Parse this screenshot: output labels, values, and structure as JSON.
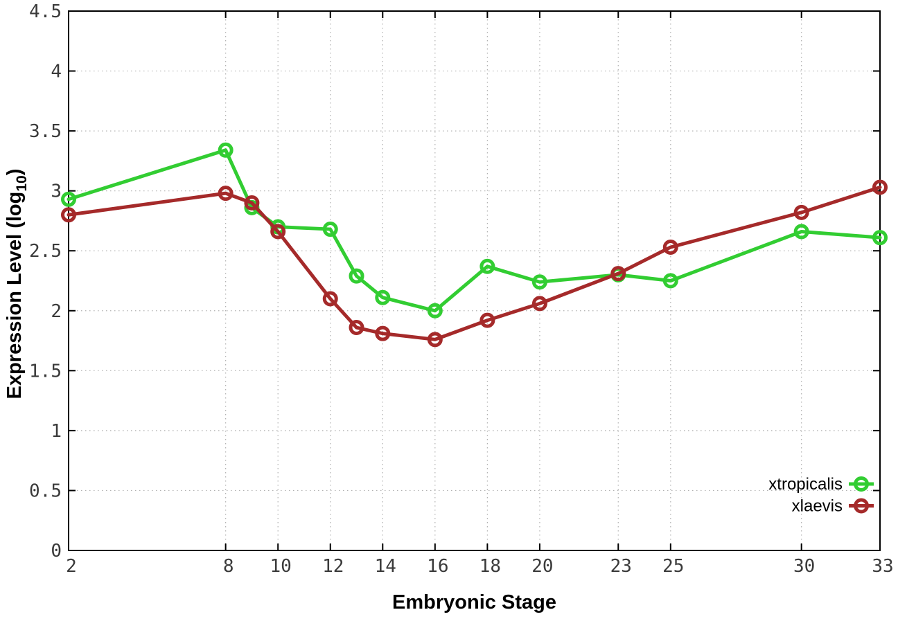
{
  "chart_data": {
    "type": "line",
    "title": "",
    "xlabel": "Embryonic Stage",
    "ylabel": "Expression Level (log10)",
    "ylabel_parts": {
      "main": "Expression Level (log",
      "subscript": "10",
      "suffix": ")"
    },
    "xlim": [
      2,
      33
    ],
    "ylim": [
      0,
      4.5
    ],
    "xticks": [
      2,
      8,
      10,
      12,
      14,
      16,
      18,
      20,
      23,
      25,
      30,
      33
    ],
    "yticks": [
      0,
      0.5,
      1,
      1.5,
      2,
      2.5,
      3,
      3.5,
      4,
      4.5
    ],
    "grid": true,
    "legend_position": "inside-bottom-right",
    "marker": "open-circle",
    "x": [
      2,
      8,
      9,
      10,
      12,
      13,
      14,
      16,
      18,
      20,
      23,
      25,
      30,
      33
    ],
    "series": [
      {
        "name": "xtropicalis",
        "color": "#32CD32",
        "values": [
          2.93,
          3.34,
          2.86,
          2.7,
          2.68,
          2.29,
          2.11,
          2.0,
          2.37,
          2.24,
          2.3,
          2.25,
          2.66,
          2.61
        ]
      },
      {
        "name": "xlaevis",
        "color": "#A52A2A",
        "values": [
          2.8,
          2.98,
          2.9,
          2.66,
          2.1,
          1.86,
          1.81,
          1.76,
          1.92,
          2.06,
          2.31,
          2.53,
          2.82,
          3.03
        ]
      }
    ]
  },
  "styles": {
    "background": "#ffffff",
    "grid_color": "#b0b0b0",
    "axis_color": "#000000",
    "tick_label_color": "#3a3a3a",
    "title_color": "#000000"
  }
}
